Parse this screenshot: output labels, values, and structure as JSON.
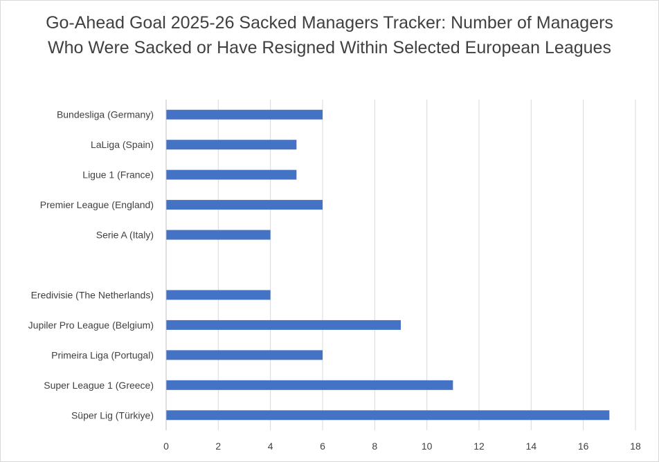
{
  "chart_data": {
    "type": "bar",
    "orientation": "horizontal",
    "title": "Go-Ahead Goal 2025-26 Sacked Managers Tracker: Number of Managers Who Were Sacked or Have Resigned Within Selected European Leagues",
    "xlabel": "",
    "ylabel": "",
    "categories": [
      "Bundesliga (Germany)",
      "LaLiga (Spain)",
      "Ligue 1 (France)",
      "Premier League (England)",
      "Serie A (Italy)",
      "",
      "Eredivisie (The Netherlands)",
      "Jupiler Pro League (Belgium)",
      "Primeira Liga (Portugal)",
      "Super League 1 (Greece)",
      "Süper Lig (Türkiye)"
    ],
    "values": [
      6,
      5,
      5,
      6,
      4,
      null,
      4,
      9,
      6,
      11,
      17
    ],
    "xlim": [
      0,
      18
    ],
    "xticks": [
      0,
      2,
      4,
      6,
      8,
      10,
      12,
      14,
      16,
      18
    ],
    "grid": true,
    "legend": "none",
    "bar_color": "#4472c4",
    "grid_color": "#d9d9d9"
  }
}
